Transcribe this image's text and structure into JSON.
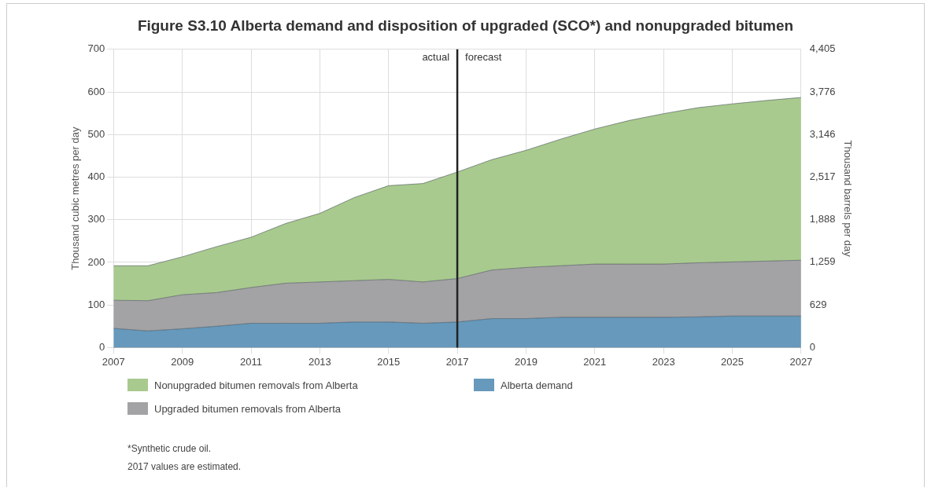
{
  "chart_data": {
    "type": "area",
    "title": "Figure S3.10  Alberta demand and disposition of upgraded (SCO*) and nonupgraded bitumen",
    "ylabel": "Thousand cubic metres per day",
    "y2label": "Thousand barrels per day",
    "x": [
      2007,
      2008,
      2009,
      2010,
      2011,
      2012,
      2013,
      2014,
      2015,
      2016,
      2017,
      2018,
      2019,
      2020,
      2021,
      2022,
      2023,
      2024,
      2025,
      2026,
      2027
    ],
    "stacked": true,
    "series": [
      {
        "name": "Alberta demand",
        "color": "#6699bb",
        "values": [
          45,
          39,
          44,
          50,
          57,
          57,
          57,
          60,
          60,
          57,
          60,
          68,
          68,
          71,
          71,
          71,
          71,
          72,
          74,
          74,
          74
        ]
      },
      {
        "name": "Upgraded bitumen removals from Alberta",
        "color": "#a3a2a4",
        "values": [
          66,
          71,
          80,
          79,
          84,
          94,
          97,
          97,
          100,
          97,
          102,
          114,
          120,
          121,
          125,
          125,
          125,
          127,
          127,
          129,
          131
        ]
      },
      {
        "name": "Nonupgraded bitumen removals from Alberta",
        "color": "#a8ca8e",
        "values": [
          81,
          82,
          89,
          108,
          118,
          140,
          161,
          195,
          220,
          231,
          250,
          259,
          275,
          297,
          317,
          337,
          353,
          364,
          371,
          377,
          382
        ]
      }
    ],
    "xlim": [
      2007,
      2027
    ],
    "xticks": [
      2007,
      2009,
      2011,
      2013,
      2015,
      2017,
      2019,
      2021,
      2023,
      2025,
      2027
    ],
    "ylim": [
      0,
      700
    ],
    "yticks": [
      0,
      100,
      200,
      300,
      400,
      500,
      600,
      700
    ],
    "y2lim": [
      0,
      4405
    ],
    "y2ticks": [
      0,
      629,
      {
        "value": 1259,
        "label": "1,259"
      },
      {
        "value": 1888,
        "label": "1,888"
      },
      {
        "value": 2517,
        "label": "2,517"
      },
      {
        "value": 3146,
        "label": "3,146"
      },
      {
        "value": 3776,
        "label": "3,776"
      },
      {
        "value": 4405,
        "label": "4,405"
      }
    ],
    "ref_lines": [
      {
        "axis": "x",
        "value": 2017,
        "color": "#222222"
      }
    ],
    "annotations": [
      {
        "text": "actual",
        "x": 2017,
        "y": 680
      },
      {
        "text": "forecast",
        "x": 2017,
        "y": 680
      },
      "*Synthetic crude oil.",
      "2017 values are estimated."
    ],
    "grid": true,
    "legend": "bottom",
    "marker": "none"
  }
}
